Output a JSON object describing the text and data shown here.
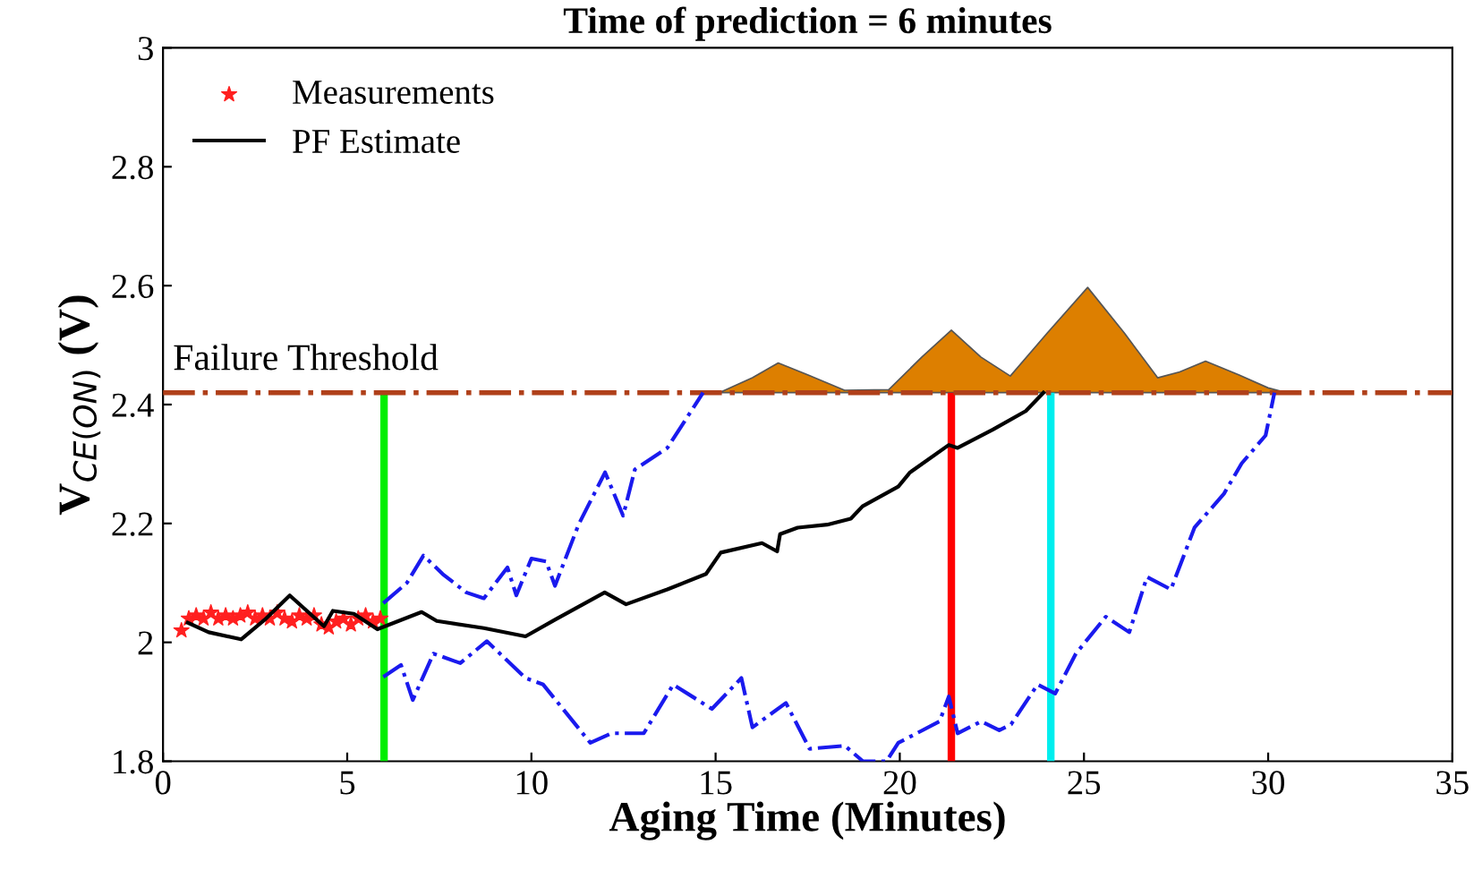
{
  "chart_data": {
    "type": "line",
    "title": "Time of prediction = 6 minutes",
    "xlabel": "Aging Time (Minutes)",
    "ylabel": "V$_{CE(ON)}$ (V)",
    "xlim": [
      0,
      35
    ],
    "xticks": [
      0,
      5,
      10,
      15,
      20,
      25,
      30,
      35
    ],
    "ylim": [
      1.8,
      3
    ],
    "yticks": [
      1.8,
      2,
      2.2,
      2.4,
      2.6,
      2.8,
      3
    ],
    "grid": false,
    "legend": "top left",
    "series": [
      {
        "name": "Measurements",
        "type": "scatter",
        "marker": "star",
        "color": "#ff2020",
        "x": [
          0.5,
          0.7,
          0.9,
          1.1,
          1.3,
          1.5,
          1.7,
          1.9,
          2.1,
          2.3,
          2.5,
          2.7,
          2.9,
          3.1,
          3.3,
          3.5,
          3.7,
          3.9,
          4.1,
          4.3,
          4.5,
          4.7,
          4.9,
          5.1,
          5.3,
          5.5,
          5.7,
          5.9
        ],
        "values": [
          2.02,
          2.04,
          2.045,
          2.04,
          2.05,
          2.04,
          2.045,
          2.04,
          2.045,
          2.05,
          2.04,
          2.045,
          2.04,
          2.05,
          2.04,
          2.035,
          2.045,
          2.04,
          2.045,
          2.03,
          2.025,
          2.035,
          2.04,
          2.03,
          2.04,
          2.045,
          2.035,
          2.04
        ]
      },
      {
        "name": "PF Estimate",
        "type": "line",
        "line_style": "solid",
        "color": "#000000",
        "x": [
          0.67,
          1.24,
          2.12,
          2.76,
          3.44,
          4.37,
          4.61,
          5.18,
          5.82,
          7.02,
          7.43,
          8.71,
          9.84,
          10.64,
          11.99,
          12.57,
          13.69,
          14.74,
          15.14,
          16.26,
          16.67,
          16.75,
          17.23,
          18.03,
          18.67,
          18.99,
          19.96,
          20.28,
          21.33,
          21.57,
          22.53,
          23.42,
          23.9
        ],
        "values": [
          2.033,
          2.017,
          2.005,
          2.038,
          2.079,
          2.027,
          2.053,
          2.048,
          2.022,
          2.051,
          2.036,
          2.024,
          2.01,
          2.038,
          2.084,
          2.064,
          2.089,
          2.115,
          2.151,
          2.167,
          2.153,
          2.182,
          2.193,
          2.198,
          2.208,
          2.229,
          2.262,
          2.286,
          2.332,
          2.327,
          2.358,
          2.389,
          2.42
        ]
      },
      {
        "line_style": "dashdot",
        "color": "#1a1aee",
        "x": [
          5.98,
          6.62,
          7.07,
          7.59,
          8.23,
          8.71,
          9.35,
          9.59,
          10.0,
          10.4,
          10.64,
          11.28,
          12.0,
          12.49,
          12.81,
          13.69,
          14.66
        ],
        "values": [
          2.066,
          2.1,
          2.146,
          2.115,
          2.084,
          2.074,
          2.126,
          2.079,
          2.141,
          2.136,
          2.095,
          2.198,
          2.286,
          2.213,
          2.291,
          2.327,
          2.42
        ]
      },
      {
        "line_style": "dashdot",
        "color": "#1a1aee",
        "x": [
          5.98,
          6.46,
          6.78,
          7.34,
          8.07,
          8.79,
          9.84,
          10.32,
          11.6,
          12.17,
          13.05,
          13.85,
          14.9,
          15.7,
          16.0,
          16.91,
          17.55,
          18.51,
          19.0,
          19.64,
          19.96,
          21.08,
          21.33,
          21.57,
          22.21,
          22.7,
          23.02,
          23.74,
          24.22,
          24.78,
          25.59,
          26.23,
          26.71,
          27.36,
          28.0,
          28.8,
          29.28,
          29.93,
          30.17
        ],
        "values": [
          1.942,
          1.962,
          1.903,
          1.981,
          1.965,
          2.002,
          1.94,
          1.929,
          1.831,
          1.847,
          1.847,
          1.929,
          1.888,
          1.94,
          1.857,
          1.898,
          1.821,
          1.826,
          1.8,
          1.8,
          1.831,
          1.867,
          1.909,
          1.847,
          1.867,
          1.852,
          1.862,
          1.929,
          1.914,
          1.981,
          2.043,
          2.017,
          2.11,
          2.089,
          2.193,
          2.25,
          2.301,
          2.348,
          2.42
        ]
      },
      {
        "type": "area",
        "color": "#dd7f00",
        "x": [
          15.1,
          16.0,
          16.7,
          17.5,
          18.5,
          19.7,
          20.6,
          21.4,
          22.2,
          23.0,
          24.0,
          25.1,
          26.1,
          27.0,
          27.6,
          28.3,
          29.2,
          30.0,
          30.5
        ],
        "values": [
          2.42,
          2.445,
          2.47,
          2.45,
          2.424,
          2.425,
          2.48,
          2.525,
          2.48,
          2.448,
          2.52,
          2.597,
          2.52,
          2.445,
          2.455,
          2.473,
          2.45,
          2.428,
          2.42
        ]
      }
    ],
    "ref_lines": [
      {
        "axis": "y",
        "value": 2.42,
        "label": "Failure Threshold",
        "color": "#b0401a",
        "line_style": "dashdot"
      },
      {
        "axis": "x",
        "value": 6.0,
        "color": "#00ee00"
      },
      {
        "axis": "x",
        "value": 21.4,
        "color": "#ff0000"
      },
      {
        "axis": "x",
        "value": 24.1,
        "color": "#00eeee"
      }
    ]
  }
}
